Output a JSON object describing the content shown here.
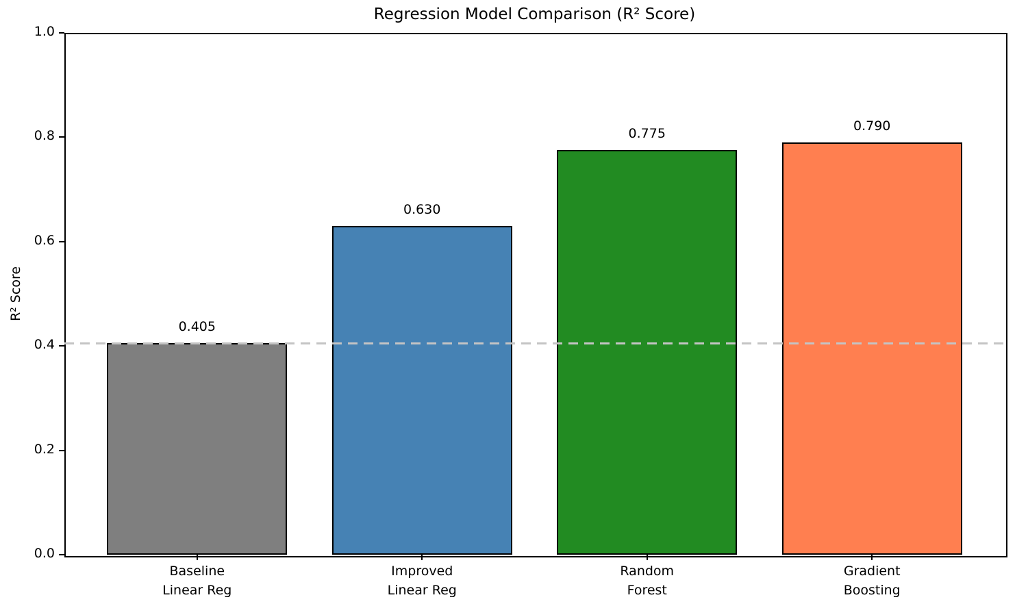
{
  "chart_data": {
    "type": "bar",
    "title": "Regression Model Comparison (R² Score)",
    "xlabel": "",
    "ylabel": "R² Score",
    "categories": [
      "Baseline\nLinear Reg",
      "Improved\nLinear Reg",
      "Random\nForest",
      "Gradient\nBoosting"
    ],
    "values": [
      0.405,
      0.63,
      0.775,
      0.79
    ],
    "value_labels": [
      "0.405",
      "0.630",
      "0.775",
      "0.790"
    ],
    "bar_colors": [
      "#7f7f7f",
      "#4682b4",
      "#228b22",
      "#ff7f50"
    ],
    "bar_edge_color": "#000000",
    "ylim": [
      0.0,
      1.0
    ],
    "yticks": [
      "0.0",
      "0.2",
      "0.4",
      "0.6",
      "0.8",
      "1.0"
    ],
    "grid": false,
    "legend": null,
    "reference_line": {
      "value": 0.405,
      "color": "#c4c4c4",
      "style": "dashed",
      "meaning": "baseline R² level"
    }
  }
}
